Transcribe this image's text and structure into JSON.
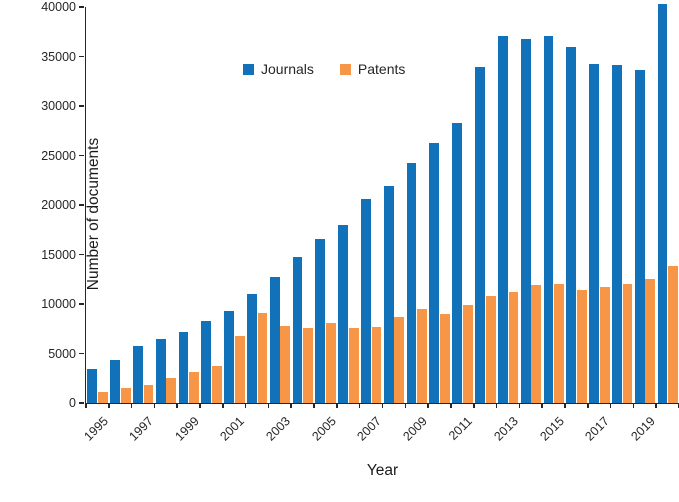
{
  "chart_data": {
    "type": "bar",
    "title": "",
    "xlabel": "Year",
    "ylabel": "Number of documents",
    "grid": false,
    "legend_position": "inside-top-left",
    "axis_color": "#262626",
    "text_color": "#262626",
    "ylim": [
      0,
      40000
    ],
    "y_ticks": [
      0,
      5000,
      10000,
      15000,
      20000,
      25000,
      30000,
      35000,
      40000
    ],
    "y_tick_labels": [
      "0",
      "5000",
      "10000",
      "15000",
      "20000",
      "25000",
      "30000",
      "35000",
      "40000"
    ],
    "x_tick_labels": [
      "1995",
      "1997",
      "1999",
      "2001",
      "2003",
      "2005",
      "2007",
      "2009",
      "2011",
      "2013",
      "2015",
      "2017",
      "2019"
    ],
    "categories": [
      "1995",
      "1996",
      "1997",
      "1998",
      "1999",
      "2000",
      "2001",
      "2002",
      "2003",
      "2004",
      "2005",
      "2006",
      "2007",
      "2008",
      "2009",
      "2010",
      "2011",
      "2012",
      "2013",
      "2014",
      "2015",
      "2016",
      "2017",
      "2018",
      "2019",
      "2020"
    ],
    "series": [
      {
        "name": "Journals",
        "color": "#1272B9",
        "values": [
          3400,
          4350,
          5800,
          6500,
          7200,
          8300,
          9300,
          11000,
          12750,
          14700,
          16600,
          18000,
          20600,
          21900,
          24200,
          26300,
          28250,
          33950,
          37100,
          36800,
          37050,
          36000,
          34250,
          34150,
          33650,
          40300
        ]
      },
      {
        "name": "Patents",
        "color": "#F79646",
        "values": [
          1150,
          1550,
          1850,
          2550,
          3150,
          3750,
          6800,
          9100,
          7800,
          7550,
          8050,
          7550,
          7700,
          8650,
          9450,
          9000,
          9900,
          10850,
          11250,
          11900,
          12050,
          11400,
          11750,
          12000,
          12550,
          13800
        ]
      }
    ]
  }
}
